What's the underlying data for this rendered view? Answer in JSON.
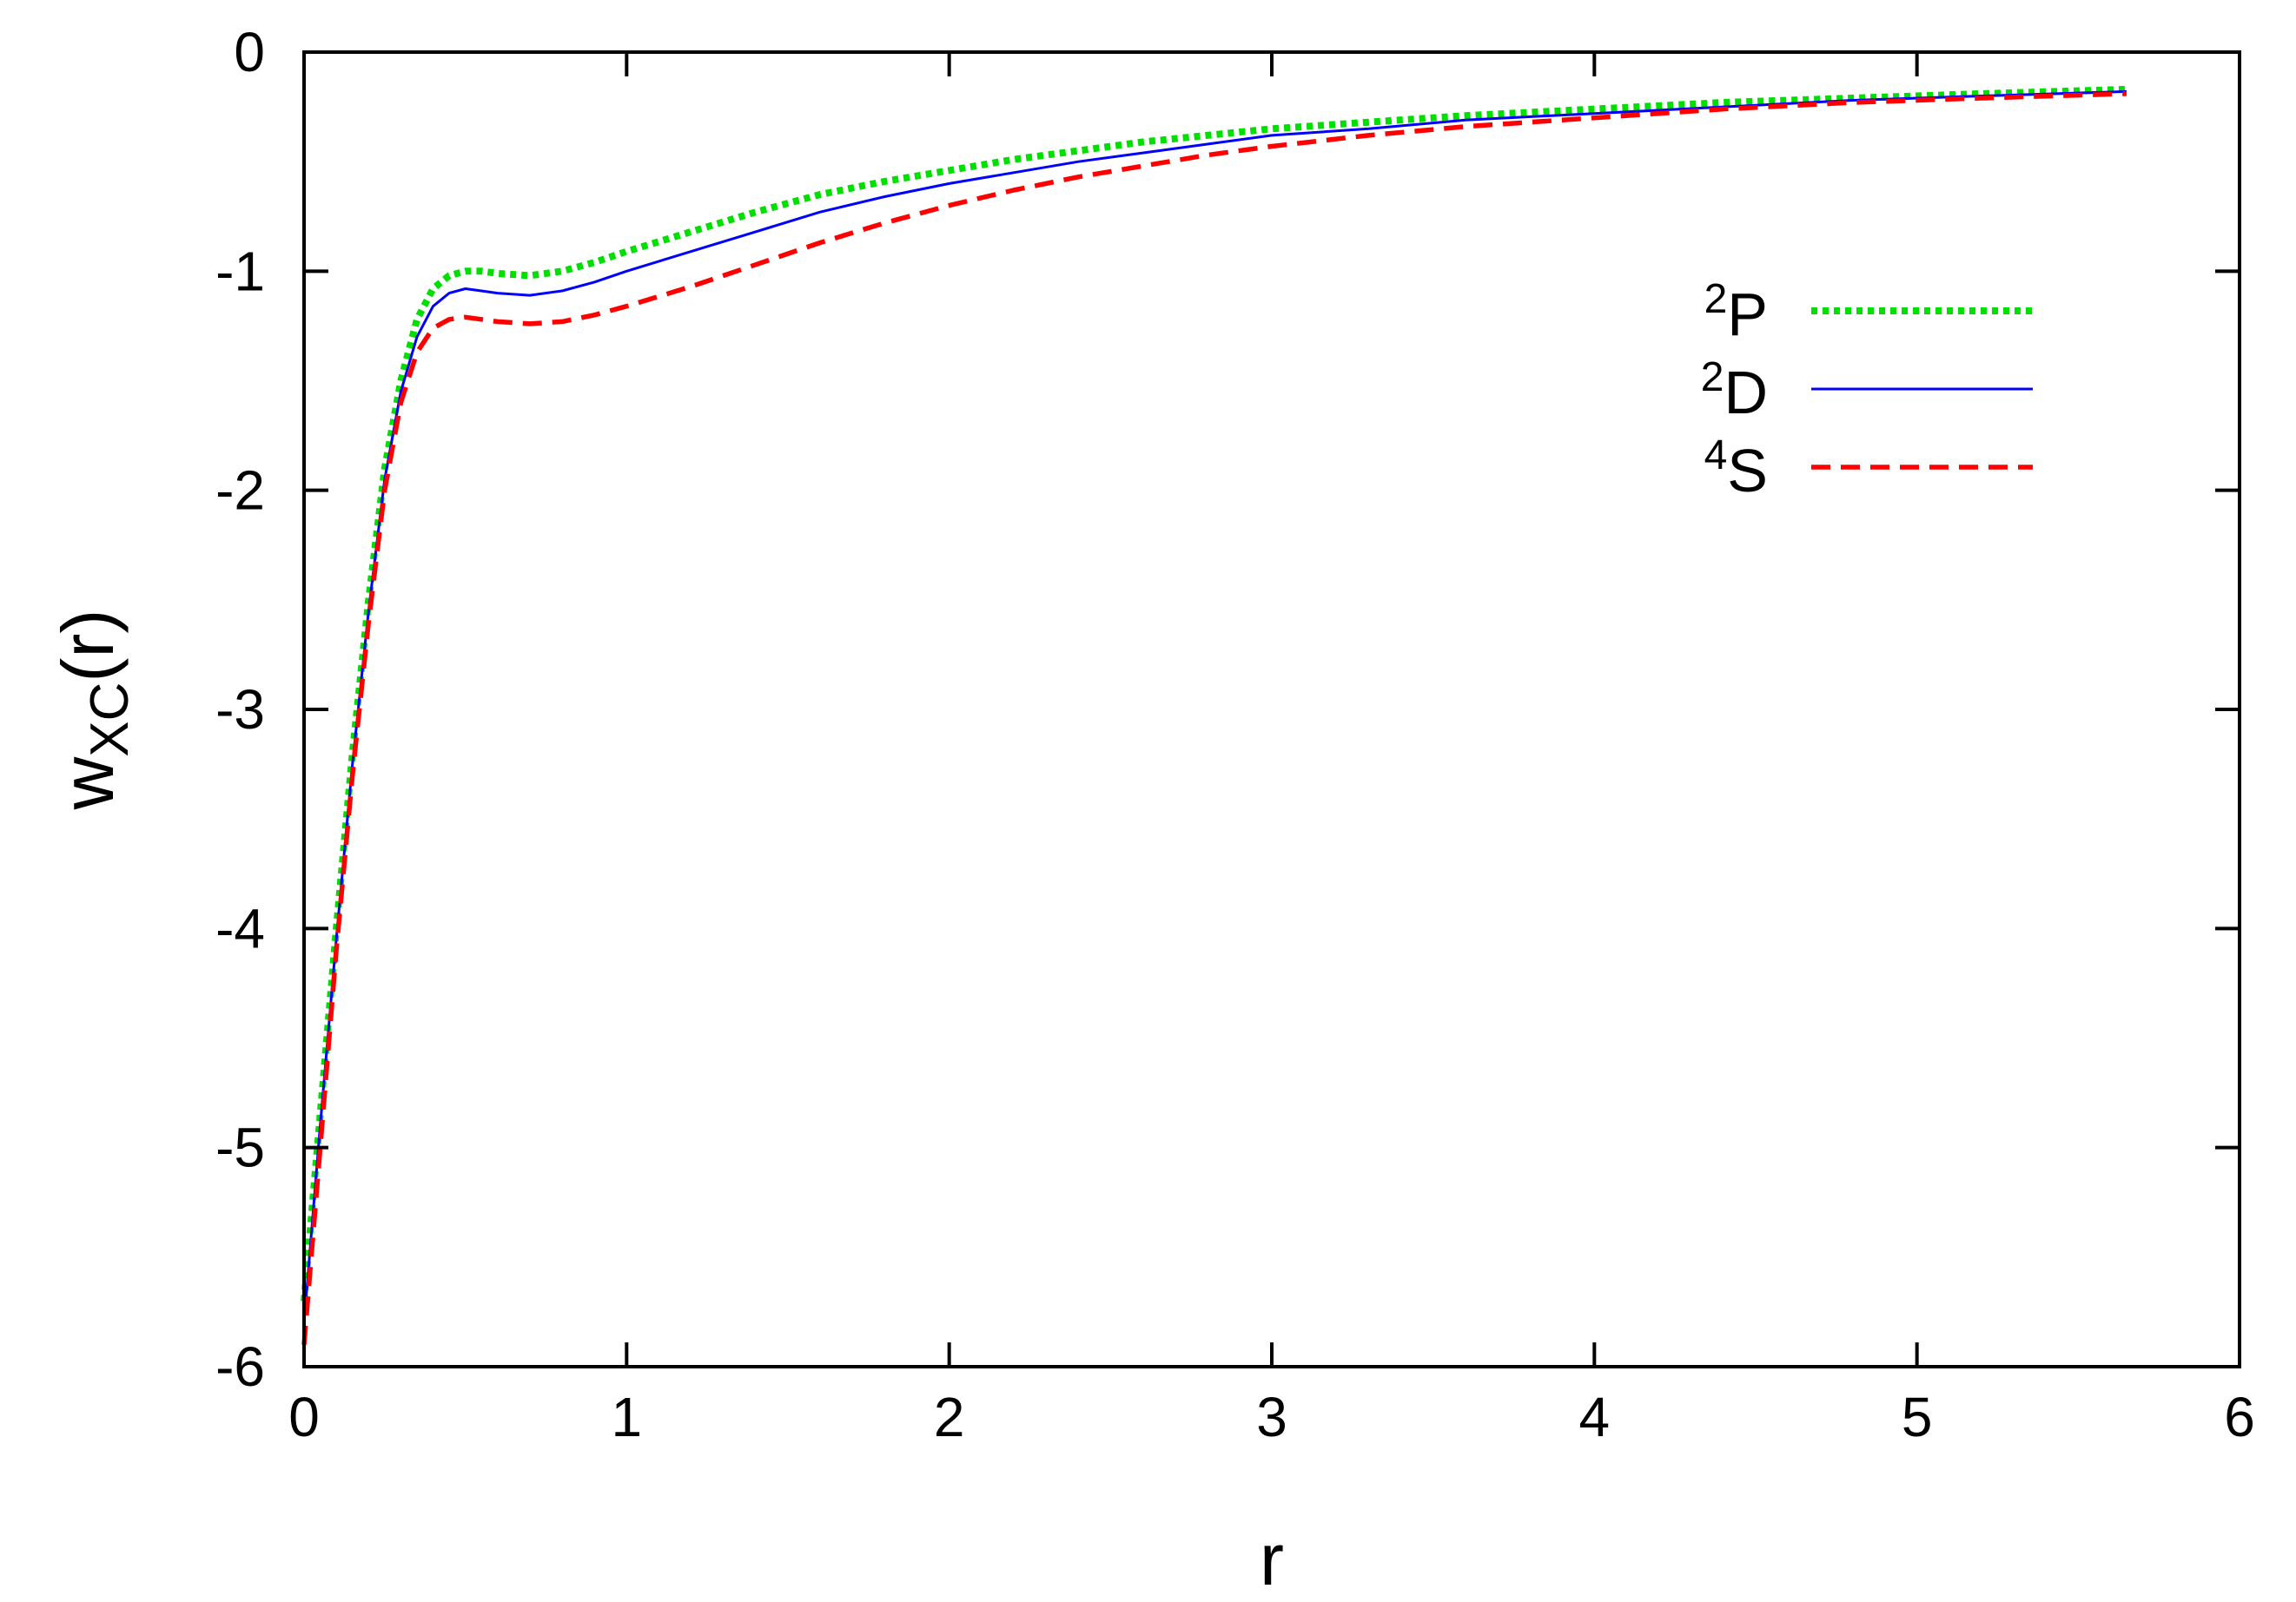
{
  "chart_data": {
    "type": "line",
    "xlabel": "r",
    "ylabel": {
      "main": "w",
      "sub": "XC",
      "suffix": "(r)"
    },
    "xlim": [
      0,
      6
    ],
    "ylim": [
      -6,
      0
    ],
    "xticks": [
      "0",
      "1",
      "2",
      "3",
      "4",
      "5",
      "6"
    ],
    "yticks": [
      "0",
      "-1",
      "-2",
      "-3",
      "-4",
      "-5",
      "-6"
    ],
    "grid": false,
    "legend_position": "top-right",
    "series": [
      {
        "name": "P",
        "name_sup": "2",
        "color": "#00e000",
        "style": "dotted",
        "x": [
          0,
          0.05,
          0.1,
          0.15,
          0.2,
          0.25,
          0.3,
          0.35,
          0.4,
          0.45,
          0.5,
          0.55,
          0.6,
          0.7,
          0.8,
          0.9,
          1.0,
          1.2,
          1.4,
          1.6,
          1.8,
          2.0,
          2.2,
          2.4,
          2.6,
          2.8,
          3.0,
          3.3,
          3.6,
          4.0,
          4.4,
          4.8,
          5.2,
          5.65
        ],
        "y": [
          -5.7,
          -4.85,
          -4.0,
          -3.2,
          -2.5,
          -1.9,
          -1.5,
          -1.22,
          -1.08,
          -1.02,
          -1.0,
          -1.0,
          -1.01,
          -1.02,
          -1.0,
          -0.96,
          -0.91,
          -0.82,
          -0.73,
          -0.65,
          -0.59,
          -0.54,
          -0.49,
          -0.45,
          -0.41,
          -0.38,
          -0.35,
          -0.32,
          -0.29,
          -0.26,
          -0.23,
          -0.21,
          -0.19,
          -0.17
        ]
      },
      {
        "name": "D",
        "name_sup": "2",
        "color": "#0000ff",
        "style": "solid",
        "x": [
          0,
          0.05,
          0.1,
          0.15,
          0.2,
          0.25,
          0.3,
          0.35,
          0.4,
          0.45,
          0.5,
          0.55,
          0.6,
          0.7,
          0.8,
          0.9,
          1.0,
          1.2,
          1.4,
          1.6,
          1.8,
          2.0,
          2.2,
          2.4,
          2.6,
          2.8,
          3.0,
          3.3,
          3.6,
          4.0,
          4.4,
          4.8,
          5.2,
          5.65
        ],
        "y": [
          -5.8,
          -4.9,
          -4.05,
          -3.25,
          -2.55,
          -1.95,
          -1.55,
          -1.3,
          -1.16,
          -1.1,
          -1.08,
          -1.09,
          -1.1,
          -1.11,
          -1.09,
          -1.05,
          -1.0,
          -0.91,
          -0.82,
          -0.73,
          -0.66,
          -0.6,
          -0.55,
          -0.5,
          -0.46,
          -0.42,
          -0.38,
          -0.35,
          -0.31,
          -0.28,
          -0.25,
          -0.22,
          -0.2,
          -0.18
        ]
      },
      {
        "name": "S",
        "name_sup": "4",
        "color": "#ff0000",
        "style": "dashed",
        "x": [
          0,
          0.05,
          0.1,
          0.15,
          0.2,
          0.25,
          0.3,
          0.35,
          0.4,
          0.45,
          0.5,
          0.55,
          0.6,
          0.7,
          0.8,
          0.9,
          1.0,
          1.2,
          1.4,
          1.6,
          1.8,
          2.0,
          2.2,
          2.4,
          2.6,
          2.8,
          3.0,
          3.3,
          3.6,
          4.0,
          4.4,
          4.8,
          5.2,
          5.65
        ],
        "y": [
          -5.9,
          -5.0,
          -4.1,
          -3.3,
          -2.6,
          -2.0,
          -1.6,
          -1.37,
          -1.26,
          -1.22,
          -1.21,
          -1.22,
          -1.23,
          -1.24,
          -1.23,
          -1.2,
          -1.16,
          -1.07,
          -0.97,
          -0.87,
          -0.78,
          -0.7,
          -0.63,
          -0.57,
          -0.52,
          -0.47,
          -0.43,
          -0.38,
          -0.34,
          -0.3,
          -0.26,
          -0.23,
          -0.21,
          -0.19
        ]
      }
    ]
  }
}
